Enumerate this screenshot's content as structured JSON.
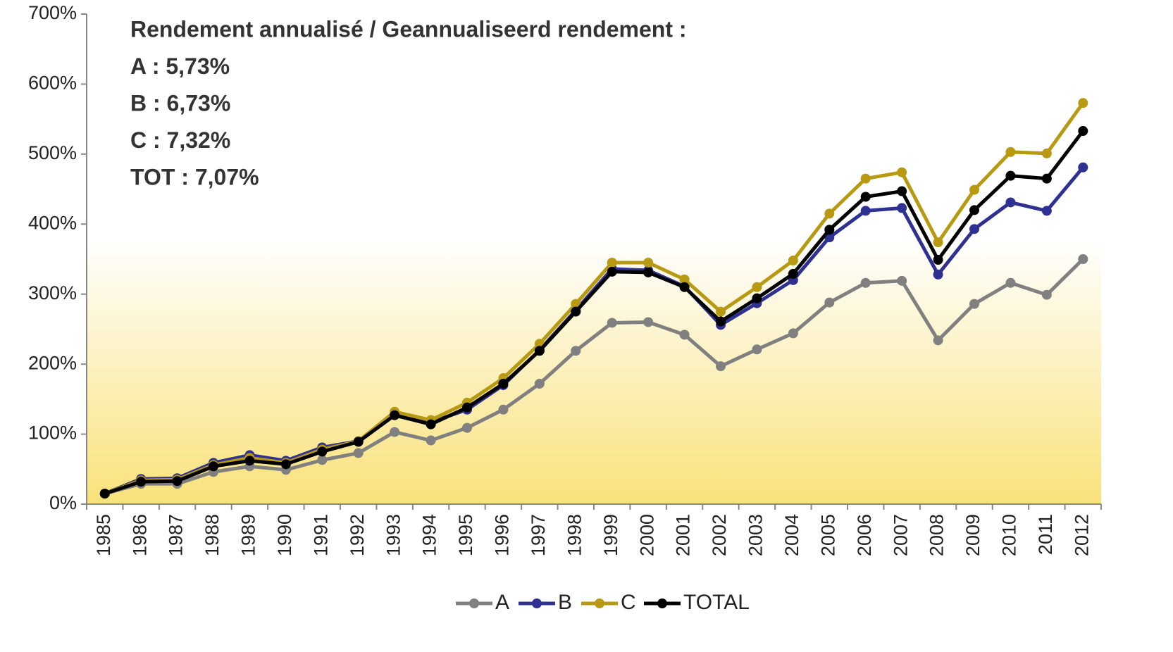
{
  "chart_data": {
    "type": "line",
    "annotations": [
      "Rendement annualisé / Geannualiseerd rendement :",
      "A : 5,73%",
      "B : 6,73%",
      "C : 7,32%",
      "TOT : 7,07%"
    ],
    "categories": [
      "1985",
      "1986",
      "1987",
      "1988",
      "1989",
      "1990",
      "1991",
      "1992",
      "1993",
      "1994",
      "1995",
      "1996",
      "1997",
      "1998",
      "1999",
      "2000",
      "2001",
      "2002",
      "2003",
      "2004",
      "2005",
      "2006",
      "2007",
      "2008",
      "2009",
      "2010",
      "2011",
      "2012"
    ],
    "series": [
      {
        "name": "A",
        "color": "#808080",
        "values": [
          15,
          29,
          29,
          46,
          54,
          49,
          63,
          73,
          103,
          91,
          109,
          135,
          172,
          219,
          259,
          260,
          242,
          197,
          221,
          244,
          288,
          316,
          319,
          234,
          286,
          316,
          299,
          350
        ]
      },
      {
        "name": "B",
        "color": "#2e3192",
        "values": [
          15,
          36,
          37,
          59,
          70,
          62,
          81,
          90,
          128,
          117,
          135,
          170,
          220,
          277,
          336,
          334,
          311,
          256,
          287,
          320,
          381,
          419,
          423,
          328,
          393,
          431,
          419,
          481
        ]
      },
      {
        "name": "C",
        "color": "#b89a12",
        "values": [
          15,
          34,
          35,
          56,
          66,
          59,
          78,
          90,
          132,
          120,
          145,
          180,
          229,
          286,
          345,
          345,
          321,
          275,
          310,
          348,
          415,
          465,
          474,
          374,
          449,
          503,
          501,
          573
        ]
      },
      {
        "name": "TOTAL",
        "color": "#000000",
        "values": [
          15,
          32,
          33,
          54,
          62,
          57,
          75,
          89,
          127,
          114,
          138,
          172,
          219,
          275,
          332,
          331,
          310,
          261,
          294,
          329,
          392,
          439,
          447,
          349,
          420,
          469,
          465,
          533
        ]
      }
    ],
    "ylim": [
      0,
      700
    ],
    "yticks": [
      {
        "value": 0,
        "label": "0%"
      },
      {
        "value": 100,
        "label": "100%"
      },
      {
        "value": 200,
        "label": "200%"
      },
      {
        "value": 300,
        "label": "300%"
      },
      {
        "value": 400,
        "label": "400%"
      },
      {
        "value": 500,
        "label": "500%"
      },
      {
        "value": 600,
        "label": "600%"
      },
      {
        "value": 700,
        "label": "700%"
      }
    ],
    "grid": false
  }
}
